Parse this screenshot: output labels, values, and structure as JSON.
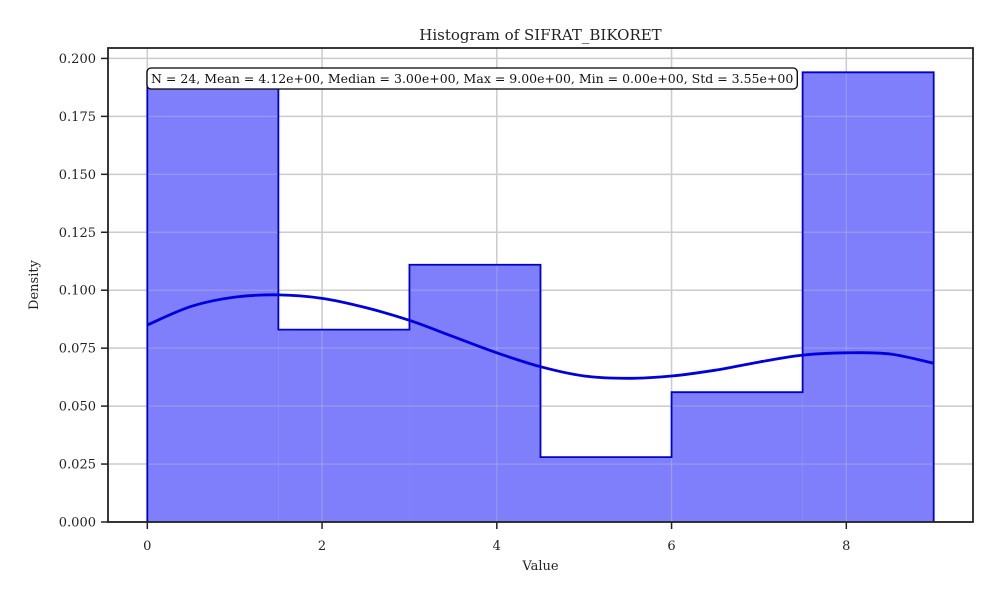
{
  "chart_data": {
    "type": "histogram",
    "title": "Histogram of SIFRAT_BIKORET",
    "xlabel": "Value",
    "ylabel": "Density",
    "xlim": [
      -0.45,
      9.45
    ],
    "ylim": [
      0,
      0.2045
    ],
    "xticks": [
      0,
      2,
      4,
      6,
      8
    ],
    "xtick_labels": [
      "0",
      "2",
      "4",
      "6",
      "8"
    ],
    "yticks": [
      0,
      0.025,
      0.05,
      0.075,
      0.1,
      0.125,
      0.15,
      0.175,
      0.2
    ],
    "ytick_labels": [
      "0.000",
      "0.025",
      "0.050",
      "0.075",
      "0.100",
      "0.125",
      "0.150",
      "0.175",
      "0.200"
    ],
    "grid": true,
    "bins": [
      {
        "start": 0.0,
        "end": 1.5,
        "density": 0.194
      },
      {
        "start": 1.5,
        "end": 3.0,
        "density": 0.083
      },
      {
        "start": 3.0,
        "end": 4.5,
        "density": 0.111
      },
      {
        "start": 4.5,
        "end": 6.0,
        "density": 0.028
      },
      {
        "start": 6.0,
        "end": 7.5,
        "density": 0.056
      },
      {
        "start": 7.5,
        "end": 9.0,
        "density": 0.194
      }
    ],
    "kde": {
      "x": [
        0,
        0.5,
        1.0,
        1.5,
        2.0,
        2.5,
        3.0,
        3.5,
        4.0,
        4.5,
        5.0,
        5.5,
        6.0,
        6.5,
        7.0,
        7.5,
        8.0,
        8.5,
        9.0
      ],
      "y": [
        0.085,
        0.093,
        0.097,
        0.098,
        0.0965,
        0.0925,
        0.087,
        0.08,
        0.073,
        0.067,
        0.063,
        0.062,
        0.063,
        0.0655,
        0.069,
        0.072,
        0.073,
        0.0725,
        0.0685
      ]
    },
    "annotation": "N = 24, Mean = 4.12e+00, Median = 3.00e+00, Max = 9.00e+00, Min = 0.00e+00, Std = 3.55e+00",
    "colors": {
      "bar_fill": "#7f7ffb",
      "bar_edge": "#0000cc",
      "kde_line": "#0000dd",
      "grid": "#cccccc",
      "axis": "#222222"
    }
  }
}
